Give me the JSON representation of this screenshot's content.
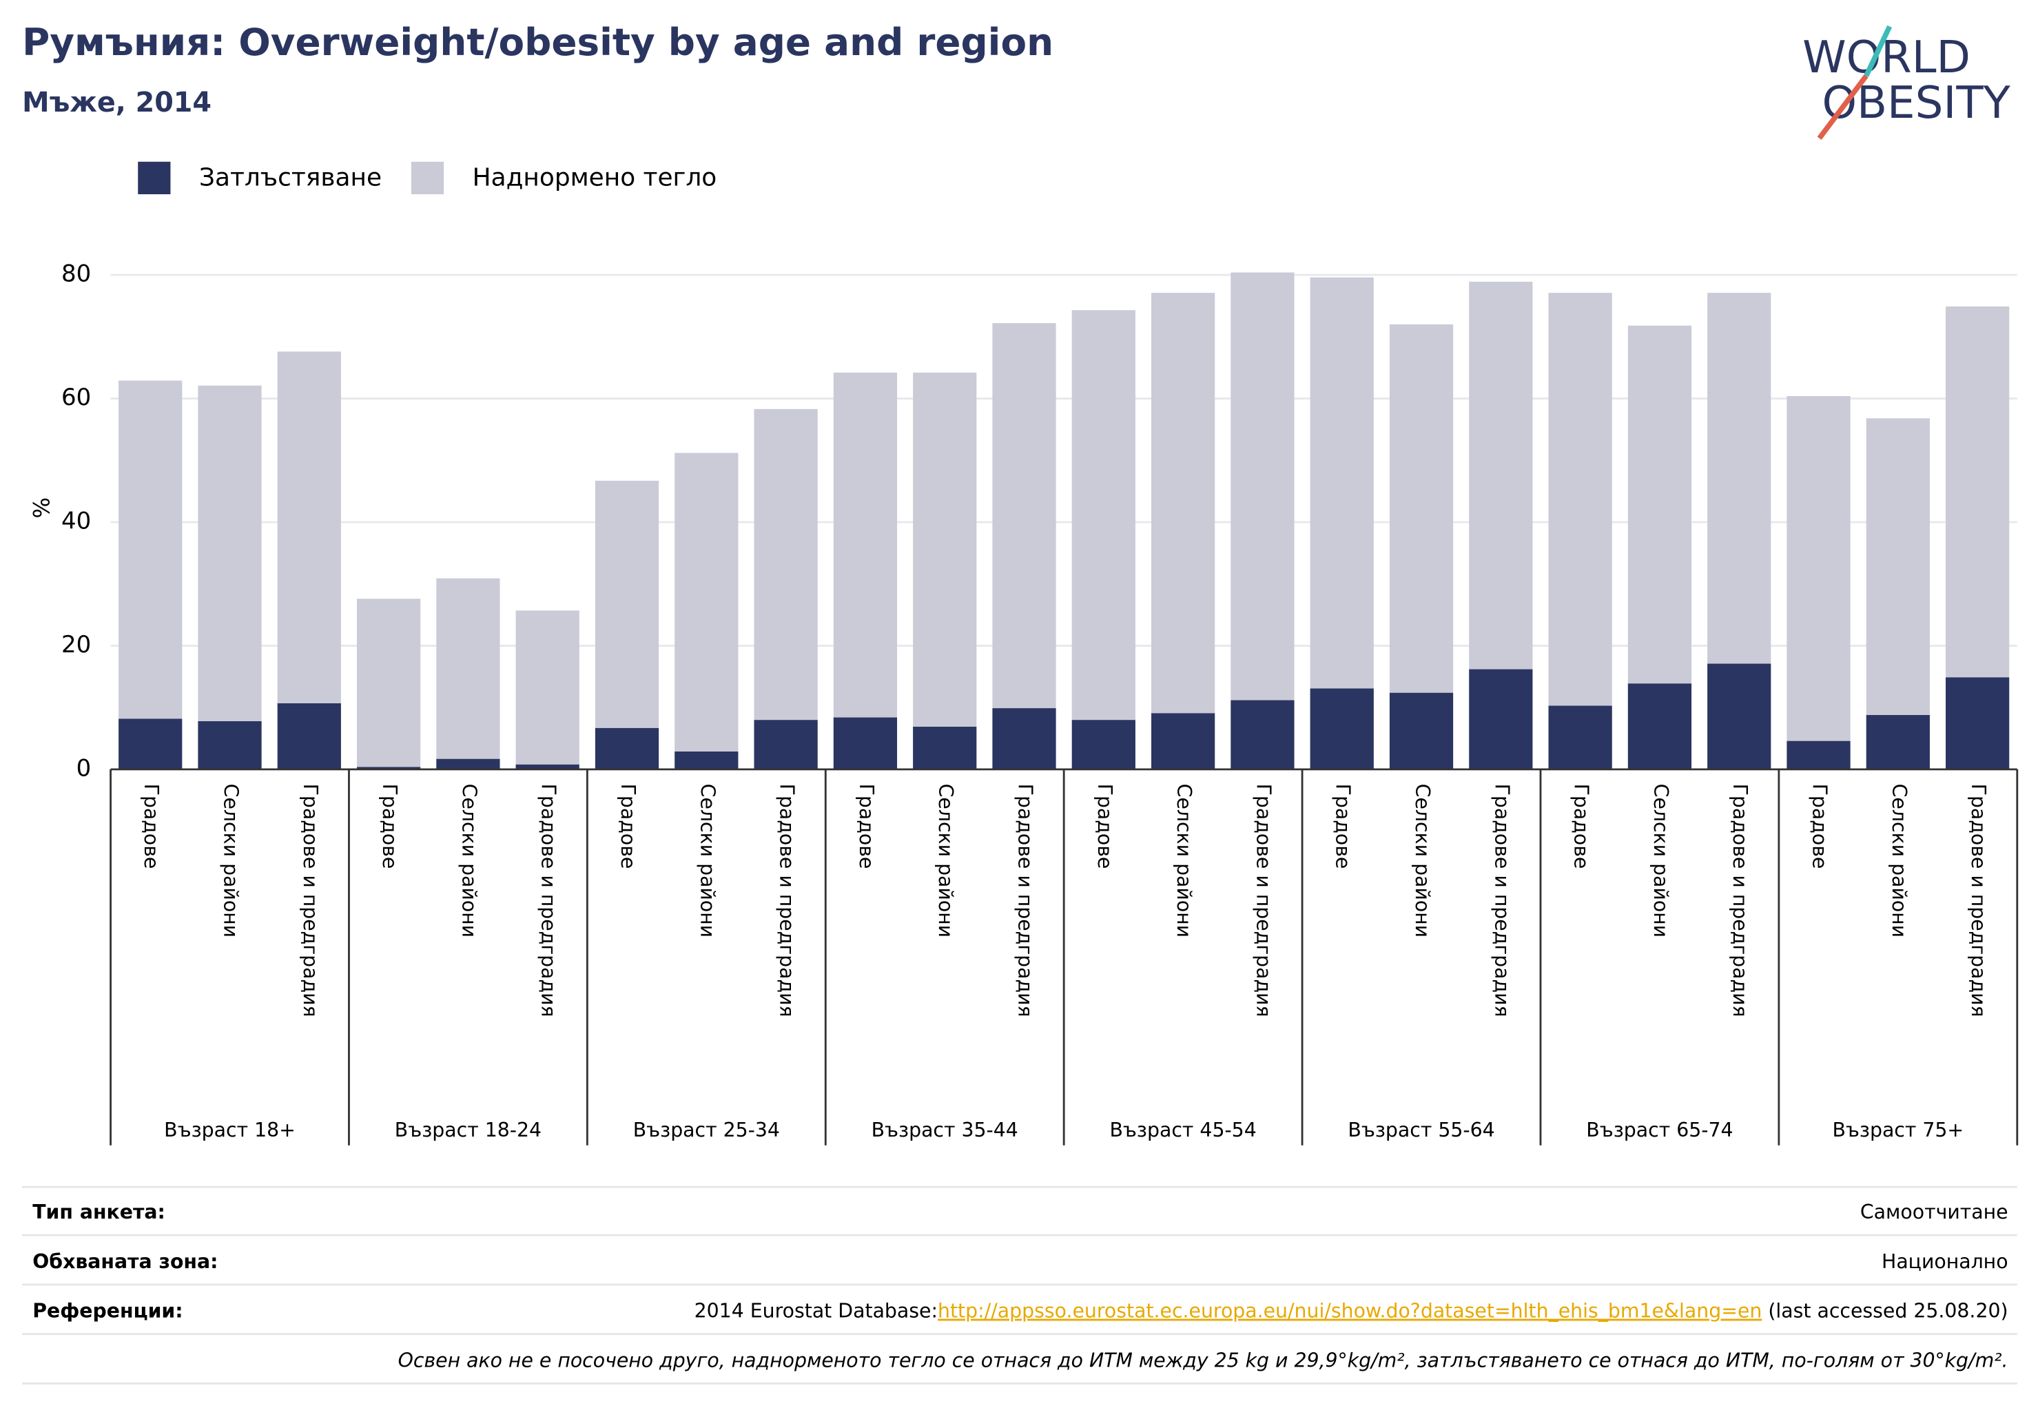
{
  "chart_data": {
    "type": "bar",
    "stacked": true,
    "title": "Румъния: Overweight/obesity by age and region",
    "subtitle": "Мъже, 2014",
    "y_label": "%",
    "categories": [
      "Градове",
      "Селски райони",
      "Градове и предградия",
      "Градове",
      "Селски райони",
      "Градове и предградия",
      "Градове",
      "Селски райони",
      "Градове и предградия",
      "Градове",
      "Селски райони",
      "Градове и предградия",
      "Градове",
      "Селски райони",
      "Градове и предградия",
      "Градове",
      "Селски райони",
      "Градове и предградия",
      "Градове",
      "Селски райони",
      "Градове и предградия",
      "Градове",
      "Селски райони",
      "Градове и предградия"
    ],
    "groups": [
      "Възраст 18+",
      "Възраст 18-24",
      "Възраст 25-34",
      "Възраст 35-44",
      "Възраст 45-54",
      "Възраст 55-64",
      "Възраст 65-74",
      "Възраст 75+"
    ],
    "series": [
      {
        "name": "Затлъстяване",
        "color": "#2b3561",
        "values": [
          8.2,
          7.8,
          10.7,
          0.4,
          1.7,
          0.8,
          6.7,
          2.9,
          8.0,
          8.4,
          6.9,
          9.9,
          8.0,
          9.1,
          11.2,
          13.1,
          12.4,
          16.2,
          10.3,
          13.9,
          17.1,
          4.6,
          8.8,
          14.9
        ]
      },
      {
        "name": "Наднормено тегло",
        "color": "#cacbd7",
        "values": [
          54.7,
          54.3,
          56.9,
          27.2,
          29.2,
          24.9,
          40.0,
          48.3,
          50.3,
          55.8,
          57.3,
          62.3,
          66.3,
          68.0,
          69.2,
          66.5,
          59.6,
          62.7,
          66.8,
          57.9,
          60.0,
          55.8,
          48.0,
          60.0
        ]
      }
    ],
    "ylim": [
      0,
      80
    ],
    "yticks": [
      0,
      20,
      40,
      60,
      80
    ],
    "grid": true,
    "legend": "top-left"
  },
  "logo": [
    "WORLD",
    "OBESITY"
  ],
  "footer": {
    "rows": [
      {
        "label": "Тип анкета:",
        "value": "Самоотчитане"
      },
      {
        "label": "Обхваната зона:",
        "value": "Национално"
      }
    ],
    "references": {
      "label": "Референции:",
      "prefix": "2014 Eurostat Database:",
      "link": "http://appsso.eurostat.ec.europa.eu/nui/show.do?dataset=hlth_ehis_bm1e&lang=en",
      "suffix": " (last accessed 25.08.20)"
    },
    "note": "Освен ако не е посочено друго, наднорменото тегло се отнася до ИТМ между 25 kg и 29,9°kg/m², затлъстяването се отнася до ИТМ, по-голям от 30°kg/m²."
  }
}
